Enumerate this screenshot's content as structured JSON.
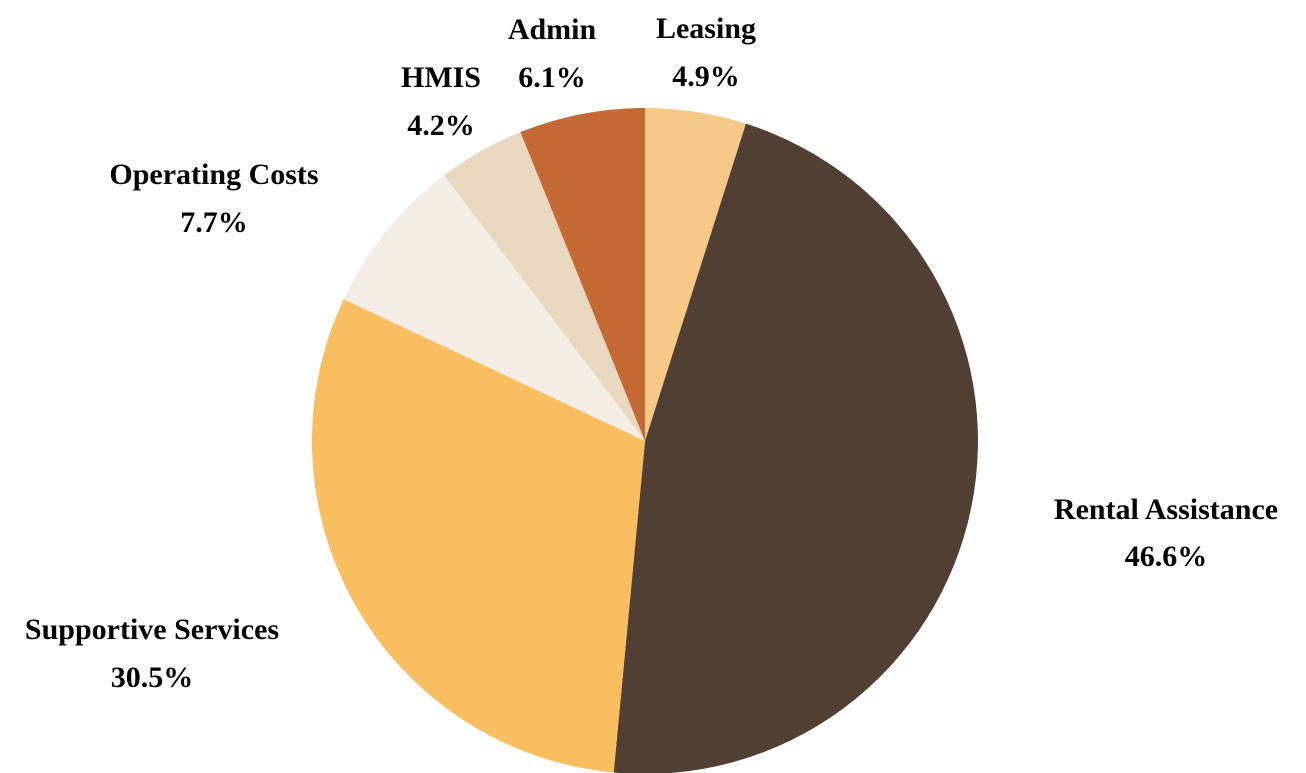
{
  "chart_data": {
    "type": "pie",
    "title": "",
    "legend": "none",
    "slices": [
      {
        "label": "Leasing",
        "value": 4.9,
        "display": "4.9%",
        "color": "#F7C988"
      },
      {
        "label": "Rental Assistance",
        "value": 46.6,
        "display": "46.6%",
        "color": "#523F33"
      },
      {
        "label": "Supportive Services",
        "value": 30.5,
        "display": "30.5%",
        "color": "#F8BE5F"
      },
      {
        "label": "Operating Costs",
        "value": 7.7,
        "display": "7.7%",
        "color": "#F3EDE6"
      },
      {
        "label": "HMIS",
        "value": 4.2,
        "display": "4.2%",
        "color": "#EAD7C0"
      },
      {
        "label": "Admin",
        "value": 6.1,
        "display": "6.1%",
        "color": "#C46834"
      }
    ]
  }
}
